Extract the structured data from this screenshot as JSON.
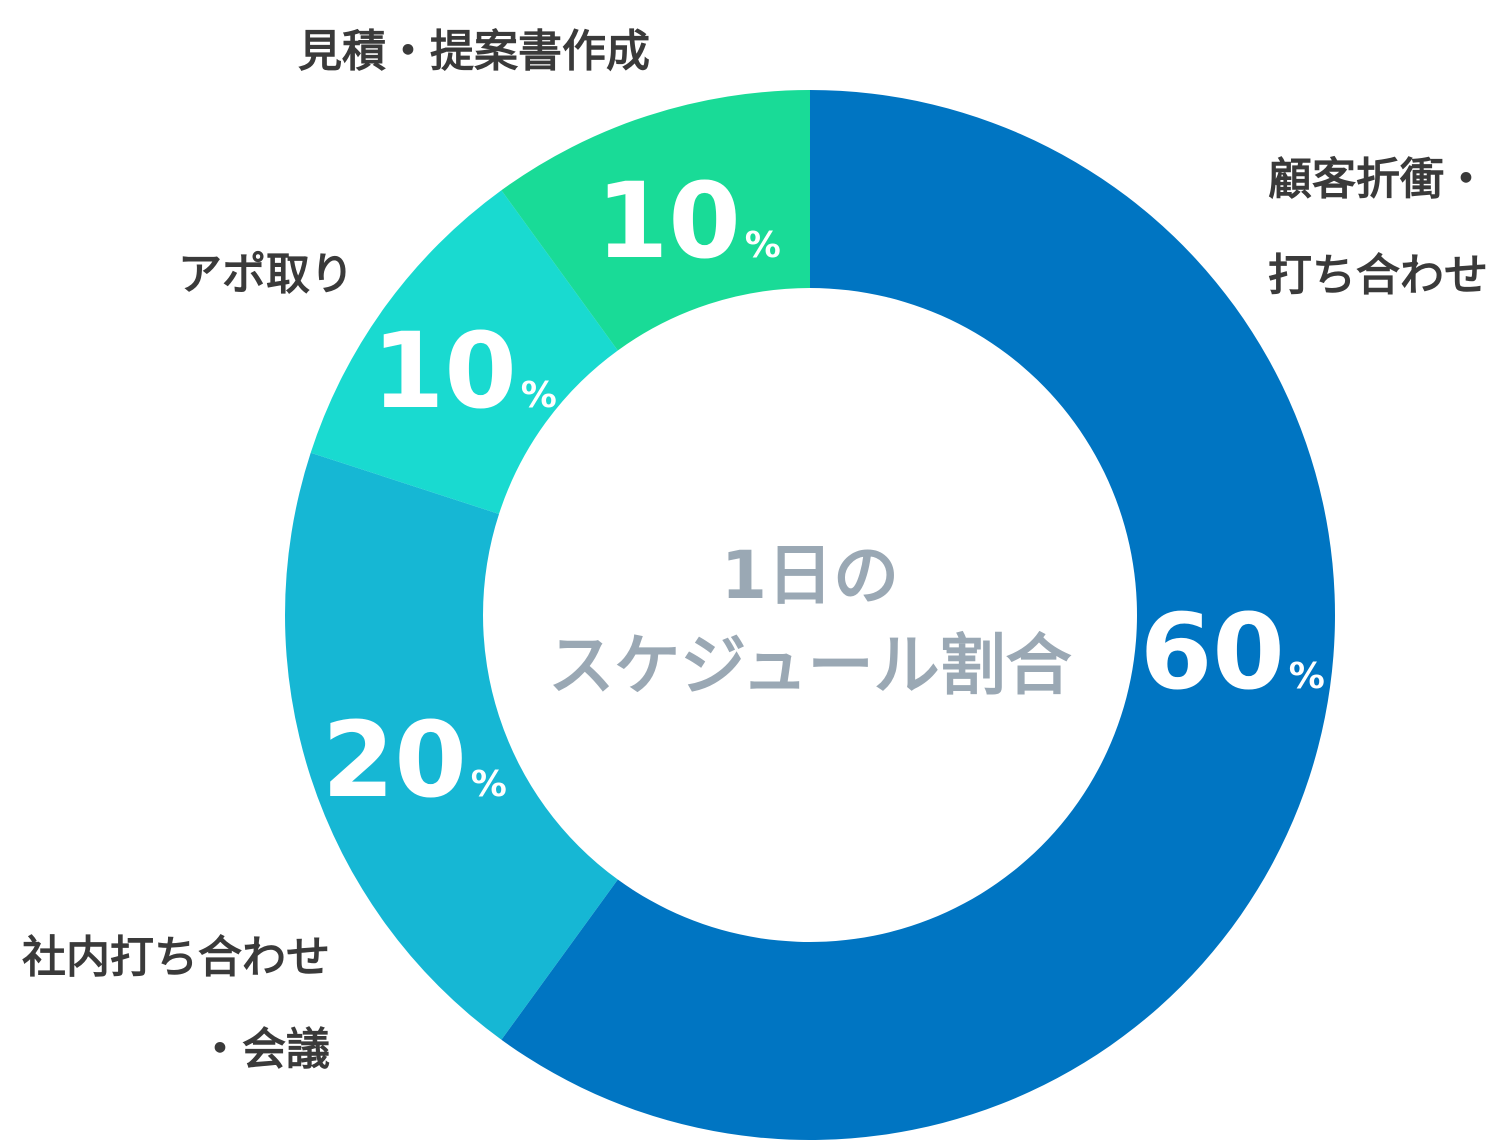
{
  "chart_data": {
    "type": "pie",
    "title_lines": [
      "1日の",
      "スケジュール割合"
    ],
    "unit": "%",
    "slices": [
      {
        "label_lines": [
          "顧客折衝・",
          "打ち合わせ"
        ],
        "value": 60,
        "color": "#0075c2"
      },
      {
        "label_lines": [
          "社内打ち合わせ",
          "・会議"
        ],
        "value": 20,
        "color": "#16b7d4"
      },
      {
        "label_lines": [
          "アポ取り"
        ],
        "value": 10,
        "color": "#19dad0"
      },
      {
        "label_lines": [
          "見積・提案書作成"
        ],
        "value": 10,
        "color": "#19db97"
      }
    ]
  }
}
